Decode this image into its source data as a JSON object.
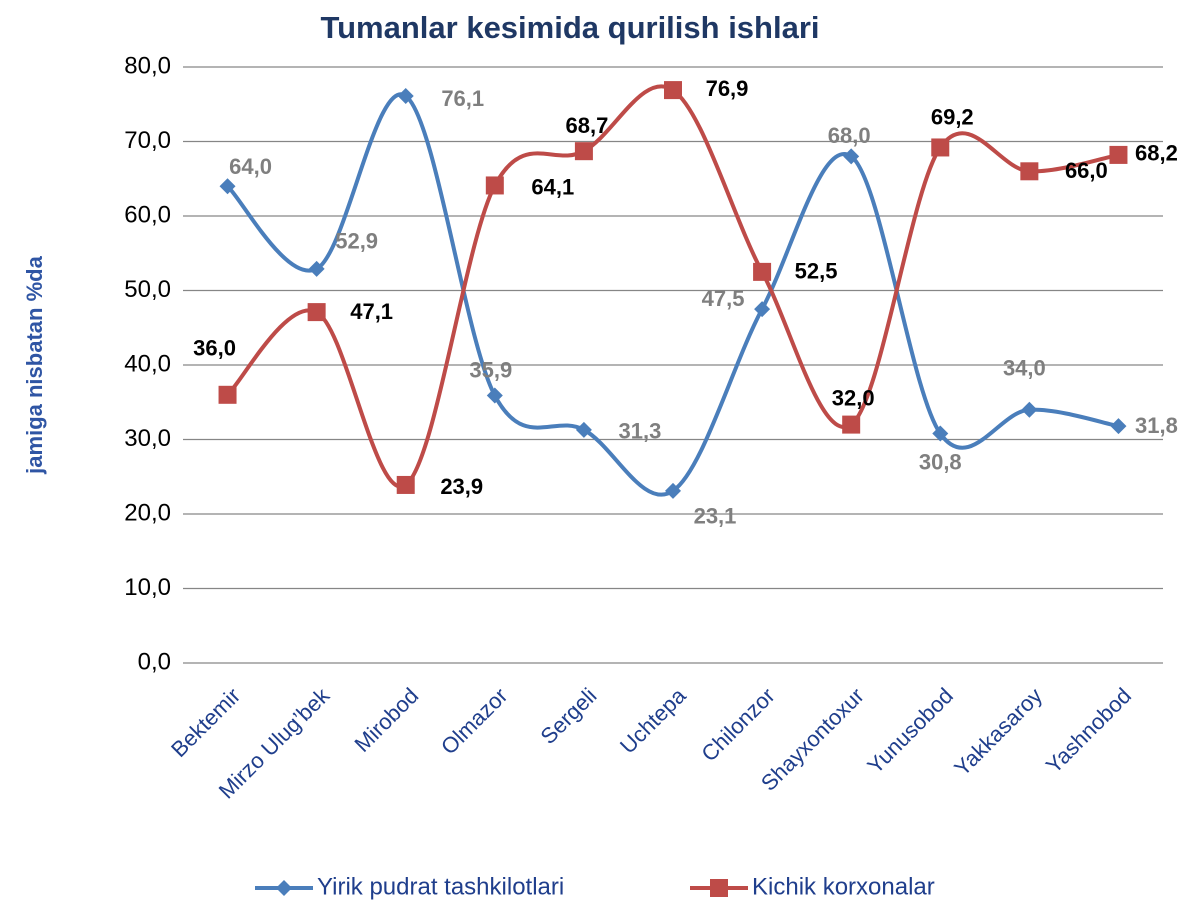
{
  "chart_data": {
    "type": "line",
    "title": "Tumanlar kesimida qurilish ishlari",
    "y_label": "jamiga nisbatan %da",
    "categories": [
      "Bektemir",
      "Mirzo Ulug’bek",
      "Mirobod",
      "Olmazor",
      "Sergeli",
      "Uchtepa",
      "Chilonzor",
      "Shayxontoxur",
      "Yunusobod",
      "Yakkasaroy",
      "Yashnobod"
    ],
    "series": [
      {
        "name": "Yirik pudrat tashkilotlari",
        "color": "#4a7ebb",
        "values": [
          64.0,
          52.9,
          76.1,
          35.9,
          31.3,
          23.1,
          47.5,
          68.0,
          30.8,
          34.0,
          31.8
        ],
        "value_labels": [
          "64,0",
          "52,9",
          "76,1",
          "35,9",
          "31,3",
          "23,1",
          "47,5",
          "68,0",
          "30,8",
          "34,0",
          "31,8"
        ]
      },
      {
        "name": "Kichik korxonalar",
        "color": "#be4b48",
        "values": [
          36.0,
          47.1,
          23.9,
          64.1,
          68.7,
          76.9,
          52.5,
          32.0,
          69.2,
          66.0,
          68.2
        ],
        "value_labels": [
          "36,0",
          "47,1",
          "23,9",
          "64,1",
          "68,7",
          "76,9",
          "52,5",
          "32,0",
          "69,2",
          "66,0",
          "68,2"
        ]
      }
    ],
    "ylim": [
      0,
      80
    ],
    "yticks": [
      {
        "value": 0,
        "label": "0,0"
      },
      {
        "value": 10,
        "label": "10,0"
      },
      {
        "value": 20,
        "label": "20,0"
      },
      {
        "value": 30,
        "label": "30,0"
      },
      {
        "value": 40,
        "label": "40,0"
      },
      {
        "value": 50,
        "label": "50,0"
      },
      {
        "value": 60,
        "label": "60,0"
      },
      {
        "value": 70,
        "label": "70,0"
      },
      {
        "value": 80,
        "label": "80,0"
      }
    ],
    "grid": true,
    "smooth": true,
    "legend": "bottom"
  }
}
